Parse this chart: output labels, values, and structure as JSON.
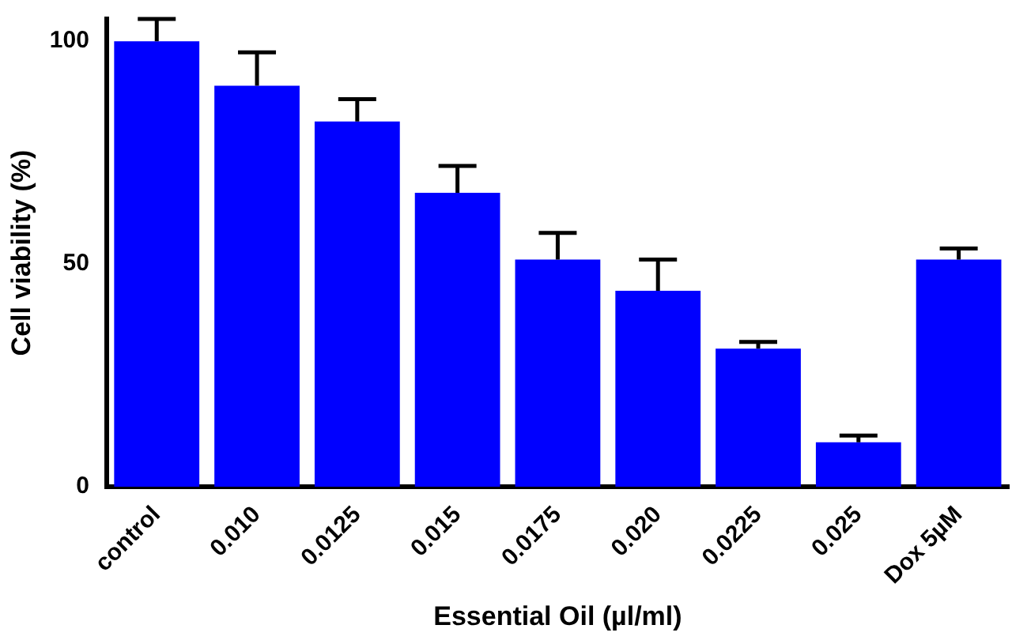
{
  "chart_data": {
    "type": "bar",
    "xlabel": "Essential Oil (µl/ml)",
    "ylabel": "Cell viability (%)",
    "categories": [
      "control",
      "0.010",
      "0.0125",
      "0.015",
      "0.0175",
      "0.020",
      "0.0225",
      "0.025",
      "Dox 5µM"
    ],
    "values": [
      100,
      90,
      82,
      66,
      51,
      44,
      31,
      10,
      51
    ],
    "errors": [
      [
        100,
        105
      ],
      [
        90,
        97.5
      ],
      [
        82,
        87
      ],
      [
        66,
        72
      ],
      [
        51,
        57
      ],
      [
        44,
        51
      ],
      [
        31,
        32.5
      ],
      [
        10,
        11.5
      ],
      [
        51,
        53.5
      ]
    ],
    "color": "#0000ff",
    "ylim": [
      0,
      105
    ],
    "yticks": [
      0,
      50,
      100
    ],
    "grid": false,
    "legend": false
  }
}
